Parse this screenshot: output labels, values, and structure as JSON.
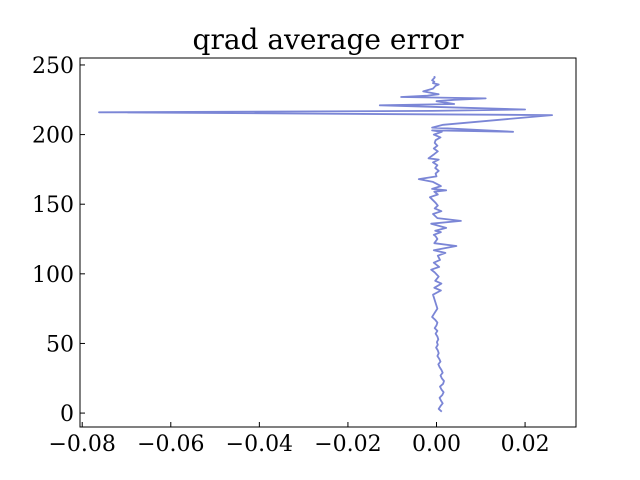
{
  "chart_data": {
    "type": "line",
    "title": "qrad average error",
    "xlabel": "",
    "ylabel": "",
    "xlim": [
      -0.0805,
      0.0315
    ],
    "ylim": [
      -10,
      255
    ],
    "xticks": [
      -0.08,
      -0.06,
      -0.04,
      -0.02,
      0.0,
      0.02
    ],
    "xtick_labels": [
      "−0.08",
      "−0.06",
      "−0.04",
      "−0.02",
      "0.00",
      "0.02"
    ],
    "yticks": [
      0,
      50,
      100,
      150,
      200,
      250
    ],
    "ytick_labels": [
      "0",
      "50",
      "100",
      "150",
      "200",
      "250"
    ],
    "grid": false,
    "tick_direction": "in",
    "series": [
      {
        "color": "#7b86d6",
        "x": [
          0.0012,
          0.0005,
          0.0009,
          0.0014,
          0.001,
          0.0007,
          0.0013,
          0.0016,
          0.0011,
          0.0008,
          0.0015,
          0.0017,
          0.0012,
          0.0009,
          0.0014,
          0.0011,
          0.0007,
          0.0004,
          0.0009,
          0.0006,
          0.0002,
          0.0005,
          0.0003,
          -0.0001,
          0.0003,
          0.0001,
          0.0004,
          0.0002,
          -0.0002,
          0.0002,
          -0.0004,
          0.0,
          0.0002,
          -0.0003,
          -0.001,
          -0.0006,
          -0.0002,
          0.0002,
          -0.0008,
          0.001,
          -0.0005,
          0.0011,
          -0.0003,
          0.0005,
          -0.0004,
          -0.0012,
          0.0006,
          -0.0006,
          0.0008,
          0.0003,
          0.002,
          -0.0006,
          0.0045,
          -0.0005,
          0.0002,
          -0.0002,
          -0.0006,
          0.001,
          -0.0003,
          0.0022,
          -0.0012,
          0.0055,
          0.0002,
          -0.0008,
          0.0011,
          -0.0004,
          0.0003,
          -0.0002,
          -0.0015,
          0.0003,
          -0.0005,
          0.0022,
          -0.001,
          0.001,
          -0.0008,
          -0.004,
          0.0,
          -0.0002,
          0.0005,
          -0.0003,
          0.0002,
          -0.0008,
          0.0005,
          -0.0018,
          -0.0005,
          0.0003,
          -0.0006,
          0.0002,
          -0.0004,
          -0.0002,
          0.0009,
          -0.0006,
          0.0012,
          -0.001,
          0.0173,
          -0.001,
          0.0015,
          0.0261,
          -0.0762,
          -0.001,
          0.02,
          -0.002,
          -0.0128,
          0.004,
          0.0,
          0.004,
          0.0111,
          -0.008,
          -0.002,
          0.0005,
          -0.003,
          -0.0008,
          -0.0002,
          0.0005,
          -0.0008,
          -0.0005,
          -0.001,
          -0.0004,
          -0.0005
        ],
        "y": [
          1,
          3,
          5,
          7,
          9,
          11,
          13,
          15,
          17,
          19,
          21,
          23,
          25,
          27,
          29,
          31,
          33,
          35,
          37,
          39,
          41,
          43,
          45,
          47,
          49,
          51,
          53,
          55,
          57,
          59,
          61,
          63,
          65,
          67,
          69,
          71,
          73,
          75,
          85,
          88,
          90,
          93,
          95,
          98,
          101,
          103,
          105,
          108,
          110,
          113,
          115,
          117,
          120,
          122,
          125,
          127,
          128,
          130,
          131,
          133,
          136,
          138,
          140,
          143,
          145,
          147,
          149,
          151,
          155,
          157,
          159,
          160,
          161,
          163,
          166,
          168,
          170,
          172,
          174,
          176,
          178,
          180,
          182,
          183,
          186,
          188,
          190,
          192,
          194,
          196,
          198,
          200,
          202,
          203,
          202,
          205,
          207,
          214,
          216,
          217,
          218,
          220,
          221,
          222,
          224,
          225,
          226,
          227,
          228,
          229,
          231,
          233,
          235,
          236,
          237,
          238,
          239,
          241,
          242
        ]
      }
    ]
  }
}
